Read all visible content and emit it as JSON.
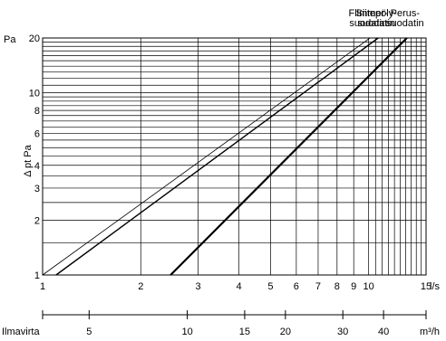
{
  "chart_data": {
    "type": "line",
    "x_scale": "log",
    "y_scale": "log",
    "grid": true,
    "xlim": [
      1,
      15
    ],
    "ylim": [
      1,
      20
    ],
    "ylabel": "Δ pt Pa",
    "y_unit": "Pa",
    "x_unit": "l/s",
    "secondary_x_label": "Ilmavirta",
    "secondary_x_unit": "m³/h",
    "x_ticks": [
      {
        "value": 1,
        "label": "1"
      },
      {
        "value": 2,
        "label": "2"
      },
      {
        "value": 3,
        "label": "3"
      },
      {
        "value": 4,
        "label": "4"
      },
      {
        "value": 5,
        "label": "5"
      },
      {
        "value": 6,
        "label": "6"
      },
      {
        "value": 7,
        "label": "7"
      },
      {
        "value": 8,
        "label": "8"
      },
      {
        "value": 9,
        "label": "9"
      },
      {
        "value": 10,
        "label": "10"
      },
      {
        "value": 15,
        "label": "15"
      }
    ],
    "y_ticks": [
      {
        "value": 1,
        "label": "1"
      },
      {
        "value": 2,
        "label": "2"
      },
      {
        "value": 3,
        "label": "3"
      },
      {
        "value": 4,
        "label": "4"
      },
      {
        "value": 6,
        "label": "6"
      },
      {
        "value": 8,
        "label": "8"
      },
      {
        "value": 10,
        "label": "10"
      },
      {
        "value": 20,
        "label": "20"
      }
    ],
    "secondary_x_ticks": [
      {
        "value": 5,
        "label": "5"
      },
      {
        "value": 10,
        "label": "10"
      },
      {
        "value": 15,
        "label": "15"
      },
      {
        "value": 20,
        "label": "20"
      },
      {
        "value": 30,
        "label": "30"
      },
      {
        "value": 40,
        "label": "40"
      }
    ],
    "series": [
      {
        "name": "Flimmer-\nsuodatin",
        "name_lines": [
          "Flimmer-",
          "suodatin"
        ],
        "color": "#000000",
        "stroke": 0.8,
        "x": [
          1,
          10.1
        ],
        "y": [
          1,
          20
        ]
      },
      {
        "name": "Siitepöly-\nsuodatin",
        "name_lines": [
          "Siitepöly-",
          "suodatin"
        ],
        "color": "#000000",
        "stroke": 1.4,
        "x": [
          1.1,
          10.7
        ],
        "y": [
          1,
          20
        ]
      },
      {
        "name": "Perus-\nsuodatin",
        "name_lines": [
          "Perus-",
          "suodatin"
        ],
        "color": "#000000",
        "stroke": 2.2,
        "x": [
          2.47,
          13.1
        ],
        "y": [
          1,
          20
        ]
      }
    ]
  }
}
